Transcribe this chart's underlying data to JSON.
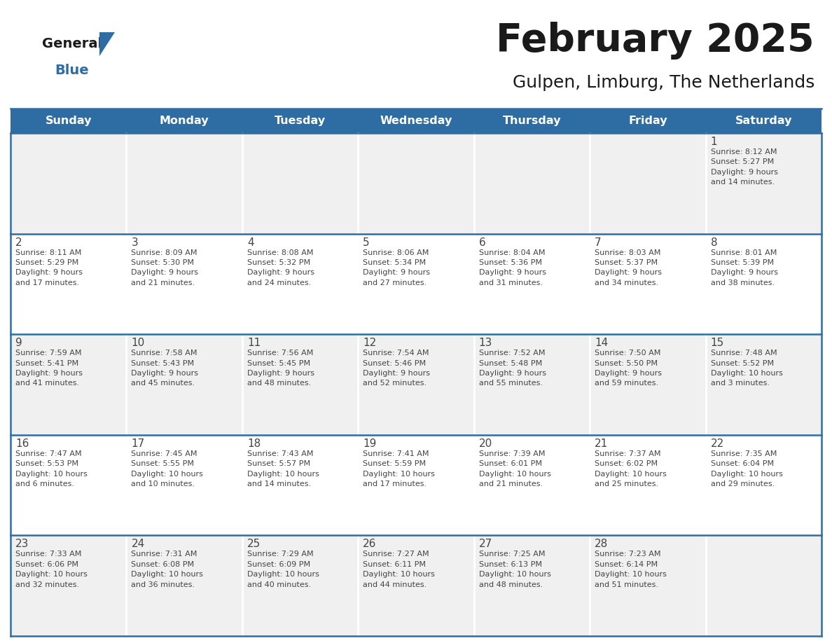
{
  "title": "February 2025",
  "subtitle": "Gulpen, Limburg, The Netherlands",
  "days_of_week": [
    "Sunday",
    "Monday",
    "Tuesday",
    "Wednesday",
    "Thursday",
    "Friday",
    "Saturday"
  ],
  "header_bg": "#2e6da4",
  "header_text": "#ffffff",
  "cell_bg_odd": "#f0f0f0",
  "cell_bg_even": "#ffffff",
  "divider_color": "#2e6da4",
  "cell_divider_color": "#ffffff",
  "day_num_color": "#444444",
  "cell_text_color": "#444444",
  "title_color": "#1a1a1a",
  "subtitle_color": "#1a1a1a",
  "logo_general_color": "#1a1a1a",
  "logo_blue_color": "#2e6da4",
  "logo_triangle_color": "#2e6da4",
  "num_rows": 5,
  "num_cols": 7,
  "calendar_data": [
    [
      {
        "day": "",
        "info": ""
      },
      {
        "day": "",
        "info": ""
      },
      {
        "day": "",
        "info": ""
      },
      {
        "day": "",
        "info": ""
      },
      {
        "day": "",
        "info": ""
      },
      {
        "day": "",
        "info": ""
      },
      {
        "day": "1",
        "info": "Sunrise: 8:12 AM\nSunset: 5:27 PM\nDaylight: 9 hours\nand 14 minutes."
      }
    ],
    [
      {
        "day": "2",
        "info": "Sunrise: 8:11 AM\nSunset: 5:29 PM\nDaylight: 9 hours\nand 17 minutes."
      },
      {
        "day": "3",
        "info": "Sunrise: 8:09 AM\nSunset: 5:30 PM\nDaylight: 9 hours\nand 21 minutes."
      },
      {
        "day": "4",
        "info": "Sunrise: 8:08 AM\nSunset: 5:32 PM\nDaylight: 9 hours\nand 24 minutes."
      },
      {
        "day": "5",
        "info": "Sunrise: 8:06 AM\nSunset: 5:34 PM\nDaylight: 9 hours\nand 27 minutes."
      },
      {
        "day": "6",
        "info": "Sunrise: 8:04 AM\nSunset: 5:36 PM\nDaylight: 9 hours\nand 31 minutes."
      },
      {
        "day": "7",
        "info": "Sunrise: 8:03 AM\nSunset: 5:37 PM\nDaylight: 9 hours\nand 34 minutes."
      },
      {
        "day": "8",
        "info": "Sunrise: 8:01 AM\nSunset: 5:39 PM\nDaylight: 9 hours\nand 38 minutes."
      }
    ],
    [
      {
        "day": "9",
        "info": "Sunrise: 7:59 AM\nSunset: 5:41 PM\nDaylight: 9 hours\nand 41 minutes."
      },
      {
        "day": "10",
        "info": "Sunrise: 7:58 AM\nSunset: 5:43 PM\nDaylight: 9 hours\nand 45 minutes."
      },
      {
        "day": "11",
        "info": "Sunrise: 7:56 AM\nSunset: 5:45 PM\nDaylight: 9 hours\nand 48 minutes."
      },
      {
        "day": "12",
        "info": "Sunrise: 7:54 AM\nSunset: 5:46 PM\nDaylight: 9 hours\nand 52 minutes."
      },
      {
        "day": "13",
        "info": "Sunrise: 7:52 AM\nSunset: 5:48 PM\nDaylight: 9 hours\nand 55 minutes."
      },
      {
        "day": "14",
        "info": "Sunrise: 7:50 AM\nSunset: 5:50 PM\nDaylight: 9 hours\nand 59 minutes."
      },
      {
        "day": "15",
        "info": "Sunrise: 7:48 AM\nSunset: 5:52 PM\nDaylight: 10 hours\nand 3 minutes."
      }
    ],
    [
      {
        "day": "16",
        "info": "Sunrise: 7:47 AM\nSunset: 5:53 PM\nDaylight: 10 hours\nand 6 minutes."
      },
      {
        "day": "17",
        "info": "Sunrise: 7:45 AM\nSunset: 5:55 PM\nDaylight: 10 hours\nand 10 minutes."
      },
      {
        "day": "18",
        "info": "Sunrise: 7:43 AM\nSunset: 5:57 PM\nDaylight: 10 hours\nand 14 minutes."
      },
      {
        "day": "19",
        "info": "Sunrise: 7:41 AM\nSunset: 5:59 PM\nDaylight: 10 hours\nand 17 minutes."
      },
      {
        "day": "20",
        "info": "Sunrise: 7:39 AM\nSunset: 6:01 PM\nDaylight: 10 hours\nand 21 minutes."
      },
      {
        "day": "21",
        "info": "Sunrise: 7:37 AM\nSunset: 6:02 PM\nDaylight: 10 hours\nand 25 minutes."
      },
      {
        "day": "22",
        "info": "Sunrise: 7:35 AM\nSunset: 6:04 PM\nDaylight: 10 hours\nand 29 minutes."
      }
    ],
    [
      {
        "day": "23",
        "info": "Sunrise: 7:33 AM\nSunset: 6:06 PM\nDaylight: 10 hours\nand 32 minutes."
      },
      {
        "day": "24",
        "info": "Sunrise: 7:31 AM\nSunset: 6:08 PM\nDaylight: 10 hours\nand 36 minutes."
      },
      {
        "day": "25",
        "info": "Sunrise: 7:29 AM\nSunset: 6:09 PM\nDaylight: 10 hours\nand 40 minutes."
      },
      {
        "day": "26",
        "info": "Sunrise: 7:27 AM\nSunset: 6:11 PM\nDaylight: 10 hours\nand 44 minutes."
      },
      {
        "day": "27",
        "info": "Sunrise: 7:25 AM\nSunset: 6:13 PM\nDaylight: 10 hours\nand 48 minutes."
      },
      {
        "day": "28",
        "info": "Sunrise: 7:23 AM\nSunset: 6:14 PM\nDaylight: 10 hours\nand 51 minutes."
      },
      {
        "day": "",
        "info": ""
      }
    ]
  ]
}
